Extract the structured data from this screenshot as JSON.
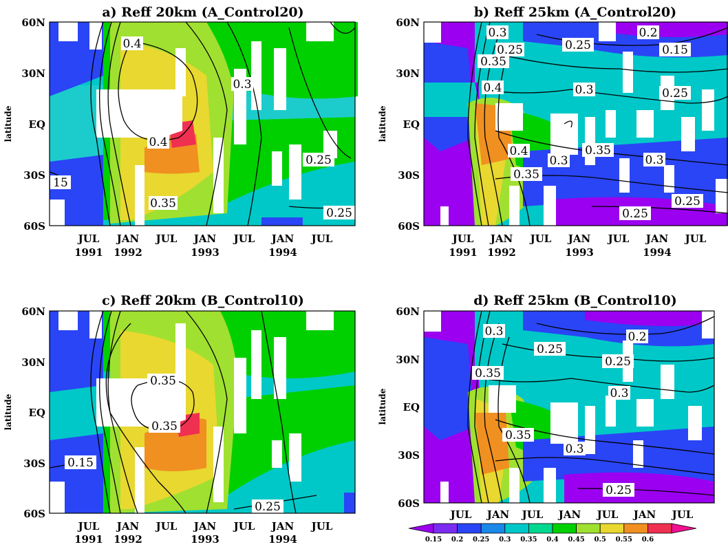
{
  "chart_data": [
    {
      "type": "heatmap",
      "title": "a) Reff 20km (A_Control20)",
      "ylabel": "latitude",
      "y_ticks": [
        "60N",
        "30N",
        "EQ",
        "30S",
        "60S"
      ],
      "x_ticks": [
        {
          "month": "JUL",
          "year": "1991"
        },
        {
          "month": "JAN",
          "year": "1992"
        },
        {
          "month": "JUL",
          "year": ""
        },
        {
          "month": "JAN",
          "year": "1993"
        },
        {
          "month": "JUL",
          "year": ""
        },
        {
          "month": "JAN",
          "year": "1994"
        },
        {
          "month": "JUL",
          "year": ""
        }
      ],
      "contour_labels": [
        "0.4",
        "0.3",
        "0.4",
        "0.35",
        "0.25",
        "0.25",
        "15"
      ]
    },
    {
      "type": "heatmap",
      "title": "b) Reff 25km (A_Control20)",
      "ylabel": "latitude",
      "y_ticks": [
        "60N",
        "30N",
        "EQ",
        "30S",
        "60S"
      ],
      "x_ticks": [
        {
          "month": "JUL",
          "year": "1991"
        },
        {
          "month": "JAN",
          "year": "1992"
        },
        {
          "month": "JUL",
          "year": ""
        },
        {
          "month": "JAN",
          "year": "1993"
        },
        {
          "month": "JUL",
          "year": ""
        },
        {
          "month": "JAN",
          "year": "1994"
        },
        {
          "month": "JUL",
          "year": ""
        }
      ],
      "contour_labels": [
        "0.3",
        "0.25",
        "0.35",
        "0.4",
        "0.25",
        "0.3",
        "0.2",
        "0.15",
        "0.25",
        "0.4",
        "0.35",
        "0.3",
        "0.35",
        "0.3",
        "0.25",
        "0.25"
      ]
    },
    {
      "type": "heatmap",
      "title": "c) Reff 20km (B_Control10)",
      "ylabel": "latitude",
      "y_ticks": [
        "60N",
        "30N",
        "EQ",
        "30S",
        "60S"
      ],
      "x_ticks": [
        {
          "month": "JUL",
          "year": "1991"
        },
        {
          "month": "JAN",
          "year": "1992"
        },
        {
          "month": "JUL",
          "year": ""
        },
        {
          "month": "JAN",
          "year": "1993"
        },
        {
          "month": "JUL",
          "year": ""
        },
        {
          "month": "JAN",
          "year": "1994"
        },
        {
          "month": "JUL",
          "year": ""
        }
      ],
      "contour_labels": [
        "0.35",
        "0.35",
        "0.15",
        "0.25"
      ]
    },
    {
      "type": "heatmap",
      "title": "d) Reff 25km (B_Control10)",
      "ylabel": "latitude",
      "y_ticks": [
        "60N",
        "30N",
        "EQ",
        "30S",
        "60S"
      ],
      "x_ticks": [
        {
          "month": "JUL",
          "year": "1991"
        },
        {
          "month": "JAN",
          "year": "1992"
        },
        {
          "month": "JUL",
          "year": ""
        },
        {
          "month": "JAN",
          "year": "1993"
        },
        {
          "month": "JUL",
          "year": ""
        },
        {
          "month": "JAN",
          "year": "1994"
        },
        {
          "month": "JUL",
          "year": ""
        }
      ],
      "contour_labels": [
        "0.3",
        "0.25",
        "0.2",
        "0.25",
        "0.35",
        "0.3",
        "0.35",
        "0.3",
        "0.25"
      ]
    }
  ],
  "colorbar": {
    "ticks": [
      "0.15",
      "0.2",
      "0.25",
      "0.3",
      "0.35",
      "0.4",
      "0.45",
      "0.5",
      "0.55",
      "0.6"
    ],
    "colors": [
      "#9b00f0",
      "#7b2cf0",
      "#2a45f5",
      "#1a88e8",
      "#00c8c8",
      "#00d890",
      "#00d000",
      "#a0e030",
      "#e8d830",
      "#f09020",
      "#f03050",
      "#f01090"
    ]
  }
}
